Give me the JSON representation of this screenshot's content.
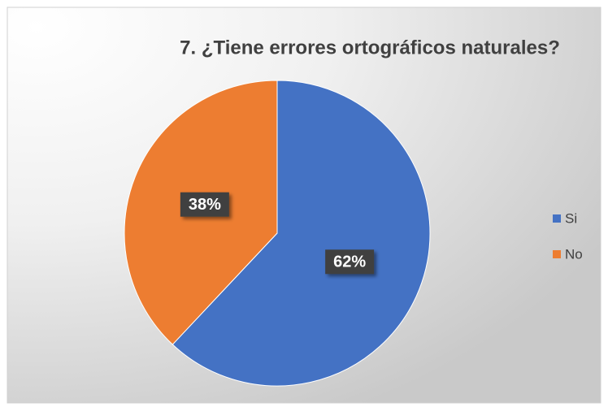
{
  "chart_data": {
    "type": "pie",
    "title": "7. ¿Tiene errores ortográficos naturales?",
    "categories": [
      "Si",
      "No"
    ],
    "values": [
      62,
      38
    ],
    "value_labels": [
      "62%",
      "38%"
    ],
    "colors": [
      "#4472c4",
      "#ed7d31"
    ],
    "legend": "right"
  }
}
